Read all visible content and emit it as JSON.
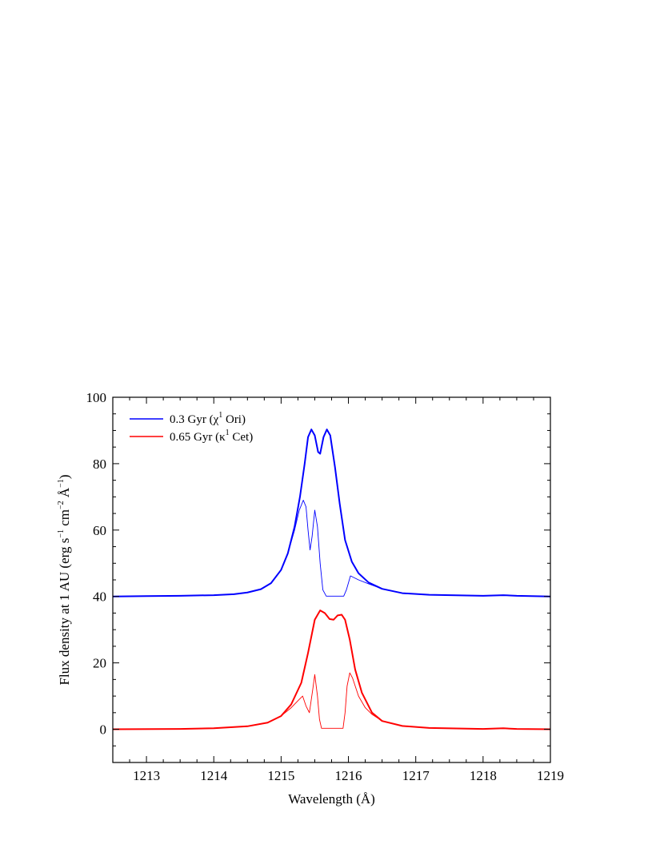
{
  "chart_data": {
    "type": "line",
    "xlabel": "Wavelength (Å)",
    "ylabel": {
      "base": "Flux density at 1 AU (erg s",
      "exp1": "−1",
      "mid1": " cm",
      "exp2": "−2",
      "mid2": " Å",
      "exp3": "−1",
      "end": ")"
    },
    "xlim": [
      1212.5,
      1219
    ],
    "ylim": [
      -10,
      100
    ],
    "x_ticks": [
      1213,
      1214,
      1215,
      1216,
      1217,
      1218,
      1219
    ],
    "x_tick_labels": [
      "1213",
      "1214",
      "1215",
      "1216",
      "1217",
      "1218",
      "1219"
    ],
    "y_ticks": [
      0,
      20,
      40,
      60,
      80,
      100
    ],
    "y_tick_labels": [
      "0",
      "20",
      "40",
      "60",
      "80",
      "100"
    ],
    "grid": false,
    "legend_position": "top-left",
    "legend": [
      {
        "pre": "0.3 Gyr (χ",
        "sup": "1",
        "post": " Ori)",
        "color": "#0000ff"
      },
      {
        "pre": "0.65 Gyr (κ",
        "sup": "1",
        "post": " Cet)",
        "color": "#ff0000"
      }
    ],
    "series": [
      {
        "name": "0.3 Gyr (χ1 Ori)",
        "color": "#0000ff",
        "width": "thick",
        "points": [
          [
            1212.5,
            40.0
          ],
          [
            1213.0,
            40.1
          ],
          [
            1213.5,
            40.2
          ],
          [
            1214.0,
            40.4
          ],
          [
            1214.3,
            40.7
          ],
          [
            1214.5,
            41.2
          ],
          [
            1214.7,
            42.2
          ],
          [
            1214.85,
            44.0
          ],
          [
            1215.0,
            48.0
          ],
          [
            1215.1,
            53.0
          ],
          [
            1215.2,
            61.0
          ],
          [
            1215.28,
            70.0
          ],
          [
            1215.35,
            80.0
          ],
          [
            1215.4,
            88.0
          ],
          [
            1215.45,
            90.3
          ],
          [
            1215.5,
            88.5
          ],
          [
            1215.55,
            83.5
          ],
          [
            1215.58,
            83.0
          ],
          [
            1215.63,
            88.0
          ],
          [
            1215.68,
            90.3
          ],
          [
            1215.73,
            88.5
          ],
          [
            1215.8,
            79.0
          ],
          [
            1215.87,
            68.0
          ],
          [
            1215.95,
            57.0
          ],
          [
            1216.05,
            50.5
          ],
          [
            1216.15,
            47.0
          ],
          [
            1216.3,
            44.2
          ],
          [
            1216.5,
            42.3
          ],
          [
            1216.8,
            41.0
          ],
          [
            1217.2,
            40.5
          ],
          [
            1218.0,
            40.2
          ],
          [
            1218.3,
            40.4
          ],
          [
            1218.5,
            40.2
          ],
          [
            1219.0,
            40.0
          ]
        ]
      },
      {
        "name": "",
        "color": "#0000ff",
        "width": "thin",
        "points": [
          [
            1212.5,
            40.0
          ],
          [
            1213.0,
            40.1
          ],
          [
            1213.5,
            40.2
          ],
          [
            1214.0,
            40.4
          ],
          [
            1214.3,
            40.7
          ],
          [
            1214.5,
            41.2
          ],
          [
            1214.7,
            42.2
          ],
          [
            1214.85,
            44.0
          ],
          [
            1215.0,
            48.0
          ],
          [
            1215.1,
            53.0
          ],
          [
            1215.2,
            60.0
          ],
          [
            1215.27,
            66.0
          ],
          [
            1215.33,
            69.0
          ],
          [
            1215.37,
            67.0
          ],
          [
            1215.4,
            60.0
          ],
          [
            1215.43,
            54.0
          ],
          [
            1215.46,
            58.0
          ],
          [
            1215.5,
            66.0
          ],
          [
            1215.54,
            61.0
          ],
          [
            1215.58,
            50.0
          ],
          [
            1215.62,
            42.0
          ],
          [
            1215.67,
            40.1
          ],
          [
            1215.93,
            40.1
          ],
          [
            1215.97,
            42.0
          ],
          [
            1216.03,
            46.2
          ],
          [
            1216.15,
            45.0
          ],
          [
            1216.3,
            43.8
          ],
          [
            1216.5,
            42.3
          ],
          [
            1216.8,
            41.0
          ],
          [
            1217.2,
            40.5
          ],
          [
            1218.0,
            40.2
          ],
          [
            1218.3,
            40.4
          ],
          [
            1218.5,
            40.2
          ],
          [
            1219.0,
            40.0
          ]
        ]
      },
      {
        "name": "0.65 Gyr (κ1 Cet)",
        "color": "#ff0000",
        "width": "thick",
        "points": [
          [
            1212.5,
            0.0
          ],
          [
            1213.5,
            0.1
          ],
          [
            1214.0,
            0.3
          ],
          [
            1214.5,
            0.9
          ],
          [
            1214.8,
            2.0
          ],
          [
            1215.0,
            4.0
          ],
          [
            1215.15,
            7.5
          ],
          [
            1215.3,
            14.0
          ],
          [
            1215.4,
            23.0
          ],
          [
            1215.5,
            33.0
          ],
          [
            1215.58,
            35.8
          ],
          [
            1215.65,
            35.0
          ],
          [
            1215.72,
            33.2
          ],
          [
            1215.78,
            33.0
          ],
          [
            1215.84,
            34.3
          ],
          [
            1215.9,
            34.5
          ],
          [
            1215.95,
            33.0
          ],
          [
            1216.02,
            27.0
          ],
          [
            1216.1,
            18.0
          ],
          [
            1216.2,
            11.0
          ],
          [
            1216.35,
            5.0
          ],
          [
            1216.5,
            2.5
          ],
          [
            1216.8,
            1.0
          ],
          [
            1217.2,
            0.4
          ],
          [
            1218.0,
            0.1
          ],
          [
            1218.3,
            0.3
          ],
          [
            1218.5,
            0.1
          ],
          [
            1219.0,
            0.0
          ]
        ]
      },
      {
        "name": "",
        "color": "#ff0000",
        "width": "thin",
        "points": [
          [
            1212.5,
            0.0
          ],
          [
            1213.5,
            0.1
          ],
          [
            1214.0,
            0.3
          ],
          [
            1214.5,
            0.9
          ],
          [
            1214.8,
            2.0
          ],
          [
            1215.0,
            4.0
          ],
          [
            1215.15,
            6.5
          ],
          [
            1215.27,
            9.0
          ],
          [
            1215.32,
            10.0
          ],
          [
            1215.37,
            7.0
          ],
          [
            1215.42,
            5.0
          ],
          [
            1215.47,
            12.0
          ],
          [
            1215.5,
            16.5
          ],
          [
            1215.54,
            10.0
          ],
          [
            1215.57,
            3.0
          ],
          [
            1215.6,
            0.3
          ],
          [
            1215.92,
            0.3
          ],
          [
            1215.95,
            5.0
          ],
          [
            1215.98,
            13.0
          ],
          [
            1216.02,
            17.0
          ],
          [
            1216.06,
            15.5
          ],
          [
            1216.15,
            10.0
          ],
          [
            1216.25,
            6.5
          ],
          [
            1216.35,
            4.5
          ],
          [
            1216.5,
            2.5
          ],
          [
            1216.8,
            1.0
          ],
          [
            1217.2,
            0.4
          ],
          [
            1218.0,
            0.1
          ],
          [
            1218.3,
            0.3
          ],
          [
            1218.5,
            0.1
          ],
          [
            1219.0,
            0.0
          ]
        ]
      }
    ]
  }
}
